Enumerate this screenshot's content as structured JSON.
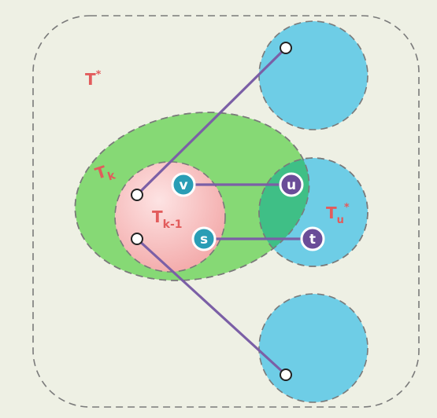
{
  "labels": {
    "t_star": "T",
    "t_star_sup": "*",
    "t_k_base": "T",
    "t_k_sub": "k",
    "t_k1_base": "T",
    "t_k1_sub": "k-1",
    "t_u_base": "T",
    "t_u_sub": "u",
    "t_u_sup": "*"
  },
  "nodes": {
    "v": "v",
    "u": "u",
    "s": "s",
    "t": "t"
  },
  "colors": {
    "background": "#eef0e4",
    "blue_region": "#6ecde6",
    "green_region": "#7fd672",
    "pink_region": "#f6b8b8",
    "overlap_region": "#3fbf86",
    "edge": "#7b5fa6",
    "node_teal": "#2a9db5",
    "node_purple": "#6a4d98",
    "label_red": "#e25c5c"
  }
}
